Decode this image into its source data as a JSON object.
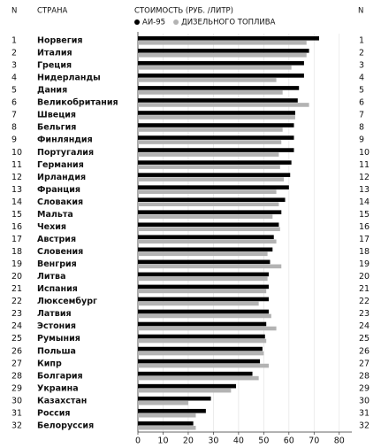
{
  "chart_data": {
    "type": "bar",
    "orientation": "horizontal",
    "title": "СТОИМОСТЬ (РУБ. /ЛИТР)",
    "rank_header": "N",
    "category_header": "СТРАНА",
    "ranks": [
      1,
      2,
      3,
      4,
      5,
      6,
      7,
      8,
      9,
      10,
      11,
      12,
      13,
      14,
      15,
      16,
      17,
      18,
      19,
      20,
      21,
      22,
      23,
      24,
      25,
      26,
      27,
      28,
      29,
      30,
      31,
      32
    ],
    "categories": [
      "Норвегия",
      "Италия",
      "Греция",
      "Нидерланды",
      "Дания",
      "Великобритания",
      "Швеция",
      "Бельгия",
      "Финляндия",
      "Португалия",
      "Германия",
      "Ирландия",
      "Франция",
      "Словакия",
      "Мальта",
      "Чехия",
      "Австрия",
      "Словения",
      "Венгрия",
      "Литва",
      "Испания",
      "Люксембург",
      "Латвия",
      "Эстония",
      "Румыния",
      "Польша",
      "Кипр",
      "Болгария",
      "Украина",
      "Казахстан",
      "Россия",
      "Белоруссия"
    ],
    "series": [
      {
        "name": "АИ-95",
        "color": "#000000",
        "values": [
          72,
          68,
          66,
          66,
          64,
          63.5,
          62.5,
          62,
          62,
          62,
          61,
          60.5,
          60,
          58.5,
          57,
          56,
          54,
          53.5,
          52.5,
          52,
          52,
          52,
          52,
          51,
          50.5,
          49.5,
          48.5,
          45.5,
          39,
          29,
          27,
          22
        ]
      },
      {
        "name": "ДИЗЕЛЬНОГО ТОПЛИВА",
        "color": "#b3b3b3",
        "values": [
          67,
          67,
          61,
          55,
          57.5,
          68,
          62.5,
          57.5,
          57,
          56,
          56.5,
          58,
          55,
          56,
          53.5,
          56.5,
          55,
          51.5,
          57,
          51.5,
          51,
          48,
          53,
          55,
          51,
          50,
          52,
          48,
          37,
          20,
          23,
          23
        ]
      }
    ],
    "xlim": [
      0,
      85
    ],
    "xticks": [
      0,
      10,
      20,
      30,
      40,
      50,
      60,
      70,
      80
    ],
    "grid": true
  }
}
